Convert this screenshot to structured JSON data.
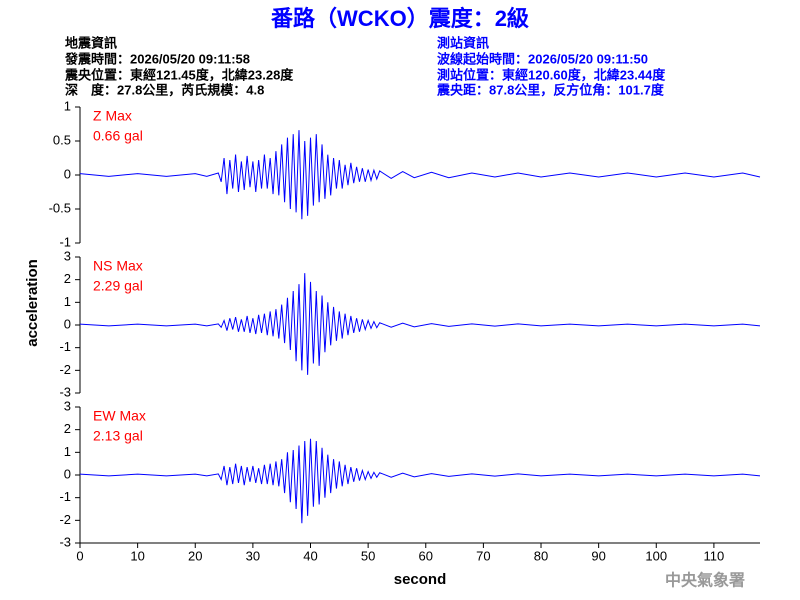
{
  "header": {
    "title": "番路（WCKO）震度：2級",
    "left": [
      "地震資訊",
      "發震時間：2026/05/20 09:11:58",
      "震央位置：東經121.45度，北緯23.28度",
      "深　度：27.8公里，芮氏規模：4.8"
    ],
    "right": [
      "測站資訊",
      "波線起始時間：2026/05/20 09:11:50",
      "測站位置：東經120.60度，北緯23.44度",
      "震央距：87.8公里，反方位角：101.7度"
    ]
  },
  "watermark": "中央氣象署",
  "chart_data": {
    "type": "line",
    "xlabel": "second",
    "ylabel": "acceleration",
    "xlim": [
      0,
      118
    ],
    "xticks": [
      0,
      10,
      20,
      30,
      40,
      50,
      60,
      70,
      80,
      90,
      100,
      110
    ],
    "x": [
      0,
      5,
      10,
      15,
      20,
      22,
      24,
      24.5,
      25,
      25.5,
      26,
      26.5,
      27,
      27.5,
      28,
      28.5,
      29,
      29.5,
      30,
      30.5,
      31,
      31.5,
      32,
      32.5,
      33,
      33.5,
      34,
      34.5,
      35,
      35.5,
      36,
      36.5,
      37,
      37.5,
      38,
      38.5,
      39,
      39.5,
      40,
      40.5,
      41,
      41.5,
      42,
      42.5,
      43,
      43.5,
      44,
      44.5,
      45,
      45.5,
      46,
      46.5,
      47,
      47.5,
      48,
      48.5,
      49,
      49.5,
      50,
      50.5,
      51,
      51.5,
      52,
      54,
      56,
      58,
      61,
      64,
      68,
      72,
      76,
      80,
      85,
      90,
      95,
      100,
      105,
      110,
      115,
      118
    ],
    "series": [
      {
        "name": "Z Max",
        "max_label": "0.66 gal",
        "color": "#0000ff",
        "ylim": [
          -1,
          1
        ],
        "yticks": [
          -1,
          -0.5,
          0,
          0.5,
          1
        ],
        "values": [
          0.02,
          -0.02,
          0.02,
          -0.02,
          0.02,
          -0.02,
          0.03,
          -0.1,
          0.25,
          -0.28,
          0.22,
          -0.2,
          0.3,
          -0.25,
          0.2,
          -0.22,
          0.28,
          -0.18,
          0.2,
          -0.25,
          0.22,
          -0.2,
          0.3,
          -0.2,
          0.25,
          -0.28,
          0.35,
          -0.3,
          0.45,
          -0.4,
          0.55,
          -0.5,
          0.6,
          -0.55,
          0.66,
          -0.65,
          0.5,
          -0.6,
          0.55,
          -0.45,
          0.6,
          -0.4,
          0.45,
          -0.35,
          0.3,
          -0.3,
          0.25,
          -0.2,
          0.22,
          -0.2,
          0.15,
          -0.15,
          0.18,
          -0.12,
          0.12,
          -0.1,
          0.1,
          -0.1,
          0.08,
          -0.08,
          0.07,
          -0.06,
          0.06,
          -0.05,
          0.05,
          -0.04,
          0.04,
          -0.04,
          0.03,
          -0.03,
          0.03,
          -0.03,
          0.03,
          -0.03,
          0.03,
          -0.03,
          0.03,
          -0.03,
          0.03,
          -0.03
        ]
      },
      {
        "name": "NS Max",
        "max_label": "2.29 gal",
        "color": "#0000ff",
        "ylim": [
          -3,
          3
        ],
        "yticks": [
          -3,
          -2,
          -1,
          0,
          1,
          2,
          3
        ],
        "values": [
          0.04,
          -0.04,
          0.04,
          -0.04,
          0.04,
          -0.04,
          0.05,
          -0.1,
          0.2,
          -0.25,
          0.3,
          -0.2,
          0.35,
          -0.3,
          0.25,
          -0.3,
          0.4,
          -0.35,
          0.3,
          -0.4,
          0.45,
          -0.35,
          0.5,
          -0.45,
          0.6,
          -0.5,
          0.7,
          -0.6,
          0.9,
          -0.8,
          1.2,
          -1.1,
          1.5,
          -1.6,
          1.8,
          -2.0,
          2.29,
          -2.2,
          1.9,
          -1.7,
          1.5,
          -1.8,
          1.3,
          -1.2,
          1.0,
          -0.9,
          0.8,
          -0.7,
          0.6,
          -0.6,
          0.5,
          -0.45,
          0.4,
          -0.35,
          0.3,
          -0.3,
          0.25,
          -0.2,
          0.2,
          -0.15,
          0.15,
          -0.12,
          0.1,
          -0.1,
          0.08,
          -0.08,
          0.06,
          -0.06,
          0.05,
          -0.05,
          0.05,
          -0.04,
          0.04,
          -0.04,
          0.04,
          -0.04,
          0.04,
          -0.04,
          0.04,
          -0.04
        ]
      },
      {
        "name": "EW Max",
        "max_label": "2.13 gal",
        "color": "#0000ff",
        "ylim": [
          -3,
          3
        ],
        "yticks": [
          -3,
          -2,
          -1,
          0,
          1,
          2,
          3
        ],
        "values": [
          0.04,
          -0.04,
          0.04,
          -0.04,
          0.04,
          -0.04,
          0.05,
          -0.2,
          0.4,
          -0.45,
          0.35,
          -0.4,
          0.5,
          -0.35,
          0.4,
          -0.45,
          0.35,
          -0.3,
          0.4,
          -0.35,
          0.3,
          -0.4,
          0.45,
          -0.4,
          0.5,
          -0.45,
          0.6,
          -0.5,
          0.7,
          -0.8,
          1.0,
          -1.2,
          1.1,
          -1.5,
          1.3,
          -2.13,
          1.5,
          -1.8,
          1.6,
          -1.4,
          1.5,
          -1.3,
          1.2,
          -1.0,
          0.9,
          -0.8,
          0.7,
          -0.6,
          0.6,
          -0.5,
          0.45,
          -0.4,
          0.35,
          -0.3,
          0.3,
          -0.25,
          0.2,
          -0.2,
          0.15,
          -0.15,
          0.12,
          -0.1,
          0.1,
          -0.1,
          0.08,
          -0.08,
          0.06,
          -0.06,
          0.05,
          -0.05,
          0.05,
          -0.04,
          0.04,
          -0.04,
          0.04,
          -0.04,
          0.04,
          -0.04,
          0.04,
          -0.04
        ]
      }
    ]
  }
}
